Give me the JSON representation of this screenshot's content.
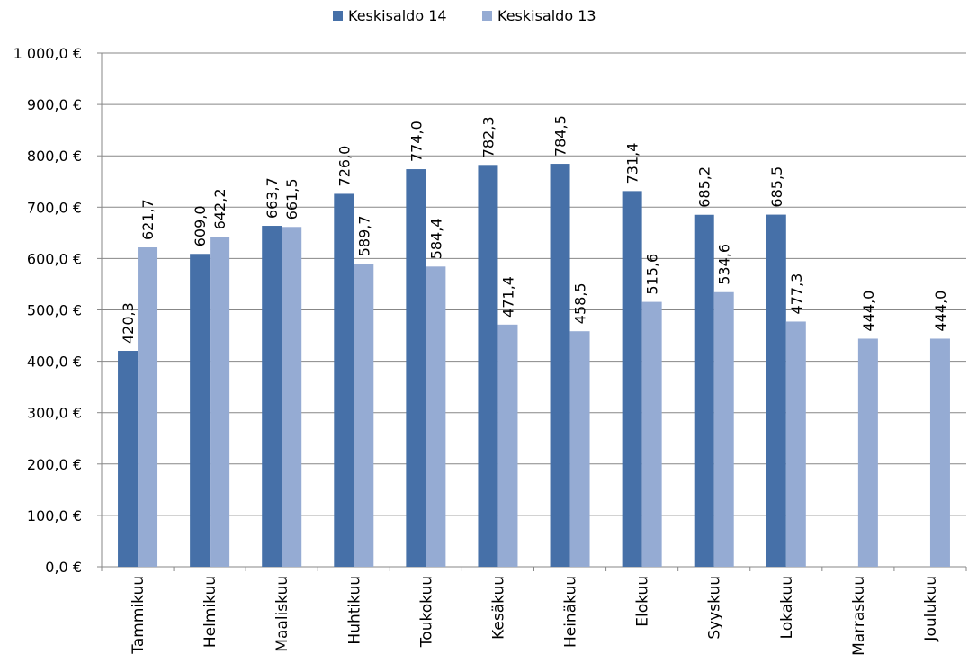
{
  "chart_data": {
    "type": "bar",
    "title": "",
    "xlabel": "",
    "ylabel": "",
    "ylim": [
      0,
      1000
    ],
    "y_ticks": [
      "0,0 €",
      "100,0 €",
      "200,0 €",
      "300,0 €",
      "400,0 €",
      "500,0 €",
      "600,0 €",
      "700,0 €",
      "800,0 €",
      "900,0 €",
      "1 000,0 €"
    ],
    "grid": true,
    "legend_position": "top",
    "categories": [
      "Tammikuu",
      "Helmikuu",
      "Maaliskuu",
      "Huhtikuu",
      "Toukokuu",
      "Kesäkuu",
      "Heinäkuu",
      "Elokuu",
      "Syyskuu",
      "Lokakuu",
      "Marraskuu",
      "Joulukuu"
    ],
    "series": [
      {
        "name": "Keskisaldo 14",
        "color": "#4670A8",
        "values": [
          420.3,
          609.0,
          663.7,
          726.0,
          774.0,
          782.3,
          784.5,
          731.4,
          685.2,
          685.5,
          null,
          null
        ],
        "labels": [
          "420,3",
          "609,0",
          "663,7",
          "726,0",
          "774,0",
          "782,3",
          "784,5",
          "731,4",
          "685,2",
          "685,5",
          "",
          ""
        ]
      },
      {
        "name": "Keskisaldo 13",
        "color": "#95ABD3",
        "values": [
          621.7,
          642.2,
          661.5,
          589.7,
          584.4,
          471.4,
          458.5,
          515.6,
          534.6,
          477.3,
          444.0,
          444.0
        ],
        "labels": [
          "621,7",
          "642,2",
          "661,5",
          "589,7",
          "584,4",
          "471,4",
          "458,5",
          "515,6",
          "534,6",
          "477,3",
          "444,0",
          "444,0"
        ]
      }
    ]
  }
}
